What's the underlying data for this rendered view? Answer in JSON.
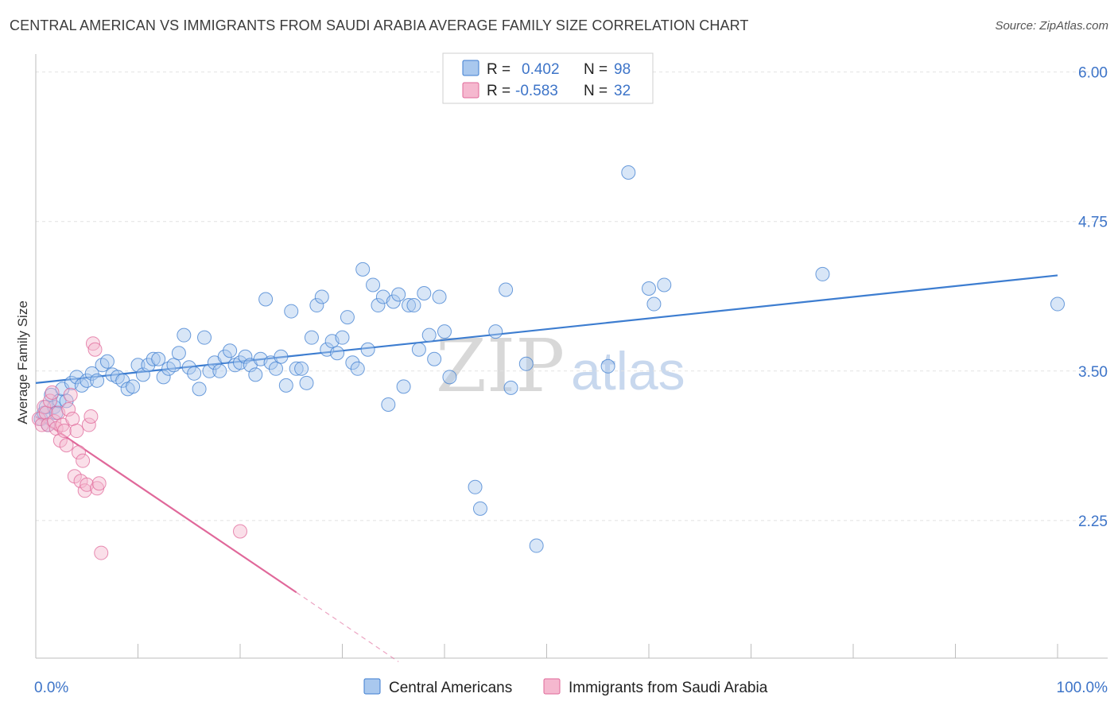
{
  "title": "CENTRAL AMERICAN VS IMMIGRANTS FROM SAUDI ARABIA AVERAGE FAMILY SIZE CORRELATION CHART",
  "source": "Source: ZipAtlas.com",
  "watermark": {
    "zip": "ZIP",
    "atlas": "atlas"
  },
  "colors": {
    "blue": "#3d7dd0",
    "blue_fill": "#a9c8ee",
    "pink": "#e0689a",
    "pink_fill": "#f5b8cf",
    "tick_text": "#3d74c8",
    "grid": "#e2e2e2"
  },
  "legend": {
    "rows": [
      {
        "r_label": "R =",
        "r_value": "0.402",
        "n_label": "N =",
        "n_value": "98",
        "color": "blue"
      },
      {
        "r_label": "R =",
        "r_value": "-0.583",
        "n_label": "N =",
        "n_value": "32",
        "color": "pink"
      }
    ]
  },
  "chart_data": {
    "type": "scatter",
    "title": "CENTRAL AMERICAN VS IMMIGRANTS FROM SAUDI ARABIA AVERAGE FAMILY SIZE CORRELATION CHART",
    "xlabel": "",
    "ylabel": "Average Family Size",
    "x_tick_labels": [
      "0.0%",
      "100.0%"
    ],
    "y_tick_labels": [
      "2.25",
      "3.50",
      "4.75",
      "6.00"
    ],
    "y_ticks": [
      2.25,
      3.5,
      4.75,
      6.0
    ],
    "xlim": [
      0,
      100
    ],
    "ylim": [
      1.1,
      6.15
    ],
    "grid": true,
    "legend_position": "top-center",
    "series": [
      {
        "name": "Central Americans",
        "color": "blue",
        "trend": {
          "x0": 0,
          "y0": 3.4,
          "x1": 100,
          "y1": 4.3
        },
        "points": [
          [
            0.5,
            3.1
          ],
          [
            0.8,
            3.15
          ],
          [
            1.0,
            3.2
          ],
          [
            1.2,
            3.05
          ],
          [
            1.5,
            3.3
          ],
          [
            1.8,
            3.2
          ],
          [
            2.0,
            3.15
          ],
          [
            2.3,
            3.25
          ],
          [
            2.6,
            3.35
          ],
          [
            3.0,
            3.25
          ],
          [
            3.5,
            3.4
          ],
          [
            4.0,
            3.45
          ],
          [
            4.5,
            3.38
          ],
          [
            5.0,
            3.42
          ],
          [
            5.5,
            3.48
          ],
          [
            6.0,
            3.42
          ],
          [
            6.5,
            3.55
          ],
          [
            7.0,
            3.58
          ],
          [
            7.5,
            3.47
          ],
          [
            8.0,
            3.45
          ],
          [
            8.5,
            3.42
          ],
          [
            9.0,
            3.35
          ],
          [
            9.5,
            3.37
          ],
          [
            10.0,
            3.55
          ],
          [
            10.5,
            3.47
          ],
          [
            11.0,
            3.55
          ],
          [
            11.5,
            3.6
          ],
          [
            12.0,
            3.6
          ],
          [
            12.5,
            3.45
          ],
          [
            13.0,
            3.52
          ],
          [
            13.5,
            3.55
          ],
          [
            14.0,
            3.65
          ],
          [
            14.5,
            3.8
          ],
          [
            15.0,
            3.53
          ],
          [
            15.5,
            3.48
          ],
          [
            16.0,
            3.35
          ],
          [
            16.5,
            3.78
          ],
          [
            17.0,
            3.5
          ],
          [
            17.5,
            3.57
          ],
          [
            18.0,
            3.5
          ],
          [
            18.5,
            3.62
          ],
          [
            19.0,
            3.67
          ],
          [
            19.5,
            3.55
          ],
          [
            20.0,
            3.57
          ],
          [
            20.5,
            3.62
          ],
          [
            21.0,
            3.55
          ],
          [
            21.5,
            3.47
          ],
          [
            22.0,
            3.6
          ],
          [
            22.5,
            4.1
          ],
          [
            23.0,
            3.57
          ],
          [
            23.5,
            3.52
          ],
          [
            24.0,
            3.62
          ],
          [
            24.5,
            3.38
          ],
          [
            25.0,
            4.0
          ],
          [
            25.5,
            3.52
          ],
          [
            26.0,
            3.52
          ],
          [
            26.5,
            3.4
          ],
          [
            27.0,
            3.78
          ],
          [
            27.5,
            4.05
          ],
          [
            28.0,
            4.12
          ],
          [
            28.5,
            3.68
          ],
          [
            29.0,
            3.75
          ],
          [
            29.5,
            3.65
          ],
          [
            30.0,
            3.78
          ],
          [
            30.5,
            3.95
          ],
          [
            31.0,
            3.57
          ],
          [
            31.5,
            3.52
          ],
          [
            32.0,
            4.35
          ],
          [
            32.5,
            3.68
          ],
          [
            33.0,
            4.22
          ],
          [
            33.5,
            4.05
          ],
          [
            34.0,
            4.12
          ],
          [
            34.5,
            3.22
          ],
          [
            35.0,
            4.08
          ],
          [
            35.5,
            4.14
          ],
          [
            36.0,
            3.37
          ],
          [
            36.5,
            4.05
          ],
          [
            37.0,
            4.05
          ],
          [
            37.5,
            3.68
          ],
          [
            38.0,
            4.15
          ],
          [
            38.5,
            3.8
          ],
          [
            39.0,
            3.6
          ],
          [
            39.5,
            4.12
          ],
          [
            40.0,
            3.83
          ],
          [
            40.5,
            3.45
          ],
          [
            43.0,
            2.53
          ],
          [
            43.5,
            2.35
          ],
          [
            45.0,
            3.83
          ],
          [
            46.0,
            4.18
          ],
          [
            46.5,
            3.36
          ],
          [
            48.0,
            3.56
          ],
          [
            49.0,
            2.04
          ],
          [
            56.0,
            3.54
          ],
          [
            58.0,
            5.16
          ],
          [
            60.0,
            4.19
          ],
          [
            60.5,
            4.06
          ],
          [
            61.5,
            4.22
          ],
          [
            77.0,
            4.31
          ],
          [
            100.0,
            4.06
          ]
        ]
      },
      {
        "name": "Immigrants from Saudi Arabia",
        "color": "pink",
        "trend": {
          "x0": 0,
          "y0": 3.12,
          "x1": 25.5,
          "y1": 1.65,
          "dash_x1": 35.5,
          "dash_y1": 1.07
        },
        "points": [
          [
            0.3,
            3.1
          ],
          [
            0.6,
            3.05
          ],
          [
            0.8,
            3.2
          ],
          [
            1.0,
            3.15
          ],
          [
            1.2,
            3.05
          ],
          [
            1.4,
            3.25
          ],
          [
            1.6,
            3.32
          ],
          [
            1.8,
            3.08
          ],
          [
            2.0,
            3.02
          ],
          [
            2.2,
            3.15
          ],
          [
            2.4,
            2.92
          ],
          [
            2.6,
            3.05
          ],
          [
            2.8,
            3.0
          ],
          [
            3.0,
            2.88
          ],
          [
            3.2,
            3.18
          ],
          [
            3.4,
            3.3
          ],
          [
            3.6,
            3.1
          ],
          [
            3.8,
            2.62
          ],
          [
            4.0,
            3.0
          ],
          [
            4.2,
            2.82
          ],
          [
            4.4,
            2.58
          ],
          [
            4.6,
            2.75
          ],
          [
            4.8,
            2.5
          ],
          [
            5.0,
            2.55
          ],
          [
            5.2,
            3.05
          ],
          [
            5.4,
            3.12
          ],
          [
            5.6,
            3.73
          ],
          [
            5.8,
            3.68
          ],
          [
            6.0,
            2.52
          ],
          [
            6.2,
            2.56
          ],
          [
            6.4,
            1.98
          ],
          [
            20.0,
            2.16
          ]
        ]
      }
    ]
  }
}
